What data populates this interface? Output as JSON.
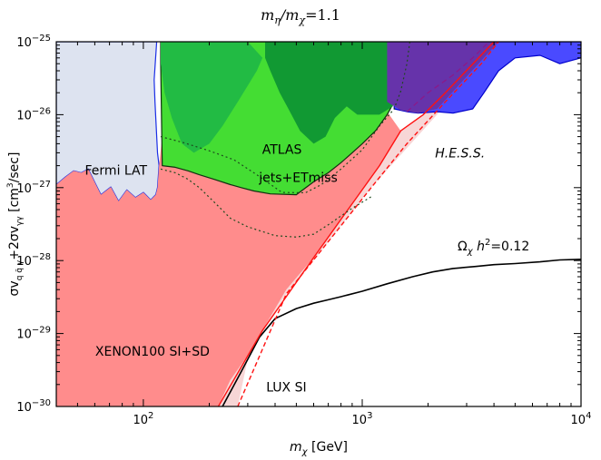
{
  "chart_data": {
    "type": "area",
    "title": "mη/mχ = 1.1",
    "xlabel": "mχ [GeV]",
    "ylabel": "σv q q̄ γ + 2σv γγ [cm³/sec]",
    "xscale": "log",
    "yscale": "log",
    "xlim": [
      40,
      10000
    ],
    "ylim": [
      1e-30,
      1e-25
    ],
    "x_ticks": [
      {
        "value": 100,
        "base": "10",
        "exp": "2"
      },
      {
        "value": 1000,
        "base": "10",
        "exp": "3"
      },
      {
        "value": 10000,
        "base": "10",
        "exp": "4"
      }
    ],
    "y_ticks": [
      {
        "value": 1e-30,
        "base": "10",
        "exp": "−30"
      },
      {
        "value": 1e-29,
        "base": "10",
        "exp": "−29"
      },
      {
        "value": 1e-28,
        "base": "10",
        "exp": "−28"
      },
      {
        "value": 1e-27,
        "base": "10",
        "exp": "−27"
      },
      {
        "value": 1e-26,
        "base": "10",
        "exp": "−26"
      },
      {
        "value": 1e-25,
        "base": "10",
        "exp": "−25"
      }
    ],
    "title_parts": {
      "m1": "m",
      "sub1": "η",
      "slash": "/",
      "m2": "m",
      "sub2": "χ",
      "eq": "=1.1"
    },
    "xlabel_parts": {
      "m": "m",
      "sub": "χ",
      "unit": " [GeV]"
    },
    "ylabel_parts": {
      "a": "σv",
      "sub1": "q q̄ γ",
      "b": "+2σv",
      "sub2": "γγ",
      "c": " [cm",
      "sup": "3",
      "d": "/sec]"
    },
    "relic_label_parts": {
      "omega": "Ω",
      "sub": "χ",
      "h": " h",
      "sup": "2",
      "val": "=0.12"
    },
    "series": [
      {
        "name": "Fermi LAT",
        "style": "fill",
        "fill": "#dde3f0",
        "stroke": "#1a2ee6",
        "points": [
          [
            40,
            1e-25
          ],
          [
            115,
            1e-25
          ],
          [
            112,
            3e-26
          ],
          [
            113,
            1.5e-26
          ],
          [
            116,
            3e-27
          ],
          [
            118,
            2e-27
          ],
          [
            116,
            1e-27
          ],
          [
            114,
            8e-28
          ],
          [
            108,
            6.8e-28
          ],
          [
            100,
            8.6e-28
          ],
          [
            92,
            7.3e-28
          ],
          [
            84,
            9.3e-28
          ],
          [
            77,
            6.5e-28
          ],
          [
            71,
            1.02e-27
          ],
          [
            64,
            8e-28
          ],
          [
            60,
            1.18e-27
          ],
          [
            56,
            1.8e-27
          ],
          [
            52,
            1.6e-27
          ],
          [
            48,
            1.7e-27
          ],
          [
            44,
            1.4e-27
          ],
          [
            40,
            1.1e-27
          ]
        ]
      },
      {
        "name": "XENON100 SI+SD",
        "style": "fill",
        "fill": "#ff8c8c",
        "stroke": "none",
        "points": [
          [
            40,
            1.1e-27
          ],
          [
            44,
            1.4e-27
          ],
          [
            48,
            1.7e-27
          ],
          [
            52,
            1.6e-27
          ],
          [
            56,
            1.8e-27
          ],
          [
            60,
            1.18e-27
          ],
          [
            64,
            8e-28
          ],
          [
            71,
            1.02e-27
          ],
          [
            77,
            6.5e-28
          ],
          [
            84,
            9.3e-28
          ],
          [
            92,
            7.3e-28
          ],
          [
            100,
            8.6e-28
          ],
          [
            108,
            6.8e-28
          ],
          [
            114,
            8e-28
          ],
          [
            116,
            1e-27
          ],
          [
            118,
            2e-27
          ],
          [
            122,
            5e-27
          ],
          [
            130,
            7e-27
          ],
          [
            150,
            9e-27
          ],
          [
            200,
            1.2e-26
          ],
          [
            300,
            1.3e-26
          ],
          [
            500,
            1.2e-26
          ],
          [
            700,
            1.1e-26
          ],
          [
            900,
            1.05e-26
          ],
          [
            1100,
            1e-26
          ],
          [
            1300,
            1.1e-26
          ],
          [
            1500,
            6e-27
          ],
          [
            1200,
            2e-27
          ],
          [
            900,
            6e-28
          ],
          [
            600,
            1.1e-28
          ],
          [
            450,
            4e-29
          ],
          [
            350,
            1.1e-29
          ],
          [
            300,
            5e-30
          ],
          [
            250,
            2.3e-30
          ],
          [
            220,
            1e-30
          ],
          [
            40,
            1e-30
          ]
        ]
      },
      {
        "name": "LUX SI",
        "style": "fill",
        "fill": "#f7d6d6",
        "stroke": "none",
        "points": [
          [
            220,
            1e-30
          ],
          [
            250,
            2.3e-30
          ],
          [
            300,
            5e-30
          ],
          [
            350,
            1.1e-29
          ],
          [
            450,
            4e-29
          ],
          [
            600,
            1.1e-28
          ],
          [
            900,
            6e-28
          ],
          [
            1200,
            2e-27
          ],
          [
            1500,
            6e-27
          ],
          [
            1900,
            1e-26
          ],
          [
            2400,
            2e-26
          ],
          [
            3200,
            3.5e-26
          ],
          [
            1100,
            1e-27
          ],
          [
            800,
            3e-28
          ],
          [
            600,
            1e-28
          ],
          [
            450,
            3.5e-29
          ],
          [
            350,
            1.1e-29
          ],
          [
            300,
            4.5e-30
          ],
          [
            270,
            1e-30
          ]
        ]
      },
      {
        "name": "ATLAS jets+ETmiss",
        "style": "fill",
        "fill": "#44dd33",
        "stroke": "#103010",
        "points": [
          [
            120,
            1e-25
          ],
          [
            1400,
            1e-25
          ],
          [
            1440,
            3e-26
          ],
          [
            1400,
            1.5e-26
          ],
          [
            1300,
            1e-26
          ],
          [
            1150,
            6e-27
          ],
          [
            1000,
            4e-27
          ],
          [
            900,
            3e-27
          ],
          [
            800,
            2.2e-27
          ],
          [
            700,
            1.6e-27
          ],
          [
            600,
            1.2e-27
          ],
          [
            500,
            8e-28
          ],
          [
            380,
            8.2e-28
          ],
          [
            320,
            9e-28
          ],
          [
            280,
            1e-27
          ],
          [
            250,
            1.1e-27
          ],
          [
            210,
            1.3e-27
          ],
          [
            180,
            1.5e-27
          ],
          [
            160,
            1.7e-27
          ],
          [
            140,
            1.9e-27
          ],
          [
            122,
            2e-27
          ],
          [
            120,
            5e-26
          ]
        ]
      },
      {
        "name": "ATLAS band",
        "style": "fill",
        "fill": "#22bb44",
        "stroke": "none",
        "points": [
          [
            120,
            1e-25
          ],
          [
            300,
            1e-25
          ],
          [
            350,
            6e-26
          ],
          [
            330,
            4e-26
          ],
          [
            300,
            2.5e-26
          ],
          [
            270,
            1.5e-26
          ],
          [
            230,
            7e-27
          ],
          [
            200,
            4e-27
          ],
          [
            170,
            3e-27
          ],
          [
            150,
            4e-27
          ],
          [
            135,
            9e-27
          ],
          [
            125,
            2e-26
          ],
          [
            120,
            5e-26
          ]
        ]
      },
      {
        "name": "ATLAS band 2",
        "style": "fill",
        "fill": "#119933",
        "stroke": "none",
        "points": [
          [
            360,
            1e-25
          ],
          [
            1400,
            1e-25
          ],
          [
            1420,
            3e-26
          ],
          [
            1380,
            1.3e-26
          ],
          [
            1200,
            1e-26
          ],
          [
            950,
            1e-26
          ],
          [
            850,
            1.3e-26
          ],
          [
            750,
            9e-27
          ],
          [
            680,
            5e-27
          ],
          [
            600,
            4e-27
          ],
          [
            520,
            6e-27
          ],
          [
            460,
            1.2e-26
          ],
          [
            420,
            2e-26
          ],
          [
            380,
            4e-26
          ],
          [
            360,
            6e-26
          ]
        ]
      },
      {
        "name": "H.E.S.S.",
        "style": "fill",
        "fill": "#4a4aff",
        "stroke": "#0000cc",
        "points": [
          [
            1400,
            1e-25
          ],
          [
            10000,
            1e-25
          ],
          [
            10000,
            6e-26
          ],
          [
            8000,
            5e-26
          ],
          [
            6500,
            6.5e-26
          ],
          [
            5000,
            6e-26
          ],
          [
            4200,
            4e-26
          ],
          [
            3600,
            2e-26
          ],
          [
            3200,
            1.2e-26
          ],
          [
            2600,
            1.05e-26
          ],
          [
            2200,
            1.1e-26
          ],
          [
            1800,
            1.05e-26
          ],
          [
            1600,
            1.1e-26
          ],
          [
            1400,
            1.2e-26
          ]
        ]
      },
      {
        "name": "H.E.S.S. overlap",
        "style": "fill",
        "fill": "#6633aa",
        "stroke": "none",
        "points": [
          [
            1300,
            1e-25
          ],
          [
            4200,
            1e-25
          ],
          [
            2200,
            1.2e-26
          ],
          [
            1800,
            1.05e-26
          ],
          [
            1500,
            1.15e-26
          ],
          [
            1300,
            1.5e-26
          ]
        ]
      },
      {
        "name": "Relic Ωχ h²=0.12",
        "style": "line",
        "stroke": "#000000",
        "dash": "",
        "width": 1.6,
        "points": [
          [
            230,
            1e-30
          ],
          [
            280,
            3e-30
          ],
          [
            340,
            9e-30
          ],
          [
            400,
            1.6e-29
          ],
          [
            500,
            2.2e-29
          ],
          [
            600,
            2.6e-29
          ],
          [
            700,
            2.9e-29
          ],
          [
            800,
            3.2e-29
          ],
          [
            1000,
            3.8e-29
          ],
          [
            1300,
            4.8e-29
          ],
          [
            1700,
            6e-29
          ],
          [
            2100,
            7e-29
          ],
          [
            2600,
            7.8e-29
          ],
          [
            3300,
            8.3e-29
          ],
          [
            4000,
            8.8e-29
          ],
          [
            5000,
            9.1e-29
          ],
          [
            6500,
            9.6e-29
          ],
          [
            8000,
            1.02e-28
          ],
          [
            10000,
            1.04e-28
          ]
        ]
      },
      {
        "name": "XENON boundary",
        "style": "line",
        "stroke": "#ff1111",
        "dash": "",
        "width": 1.4,
        "points": [
          [
            220,
            1e-30
          ],
          [
            350,
            1.1e-29
          ],
          [
            600,
            1.1e-28
          ],
          [
            900,
            6e-28
          ],
          [
            1200,
            2e-27
          ],
          [
            1500,
            6e-27
          ],
          [
            1900,
            1e-26
          ],
          [
            2400,
            2e-26
          ],
          [
            4000,
            1e-25
          ]
        ]
      },
      {
        "name": "LUX boundary",
        "style": "line",
        "stroke": "#ff1111",
        "dash": "5,3",
        "width": 1.4,
        "points": [
          [
            270,
            1e-30
          ],
          [
            450,
            3.5e-29
          ],
          [
            800,
            3e-28
          ],
          [
            1100,
            1e-27
          ],
          [
            1600,
            4e-27
          ],
          [
            2400,
            1.5e-26
          ],
          [
            3500,
            5e-26
          ],
          [
            4200,
            1e-25
          ]
        ]
      },
      {
        "name": "ATLAS dotted upper",
        "style": "line",
        "stroke": "#1e4a1e",
        "dash": "2,3",
        "width": 1.2,
        "points": [
          [
            120,
            5e-27
          ],
          [
            150,
            4.2e-27
          ],
          [
            200,
            3.2e-27
          ],
          [
            260,
            2.4e-27
          ],
          [
            330,
            1.5e-27
          ],
          [
            430,
            8.6e-28
          ],
          [
            550,
            8.5e-28
          ],
          [
            650,
            1.1e-27
          ],
          [
            800,
            1.8e-27
          ],
          [
            1000,
            3.3e-27
          ],
          [
            1200,
            7e-27
          ],
          [
            1400,
            1.2e-26
          ],
          [
            1500,
            2.1e-26
          ],
          [
            1600,
            5e-26
          ],
          [
            1650,
            1e-25
          ]
        ]
      },
      {
        "name": "ATLAS dotted lower",
        "style": "line",
        "stroke": "#1e4a1e",
        "dash": "2,3",
        "width": 1.2,
        "points": [
          [
            120,
            1.8e-27
          ],
          [
            140,
            1.6e-27
          ],
          [
            160,
            1.3e-27
          ],
          [
            180,
            1e-27
          ],
          [
            210,
            6.4e-28
          ],
          [
            250,
            3.8e-28
          ],
          [
            300,
            2.9e-28
          ],
          [
            400,
            2.2e-28
          ],
          [
            500,
            2.1e-28
          ],
          [
            600,
            2.3e-28
          ],
          [
            700,
            3.1e-28
          ],
          [
            900,
            5.2e-28
          ],
          [
            1100,
            7.5e-28
          ]
        ]
      },
      {
        "name": "H.E.S.S. dashed",
        "style": "line",
        "stroke": "#8a1a8a",
        "dash": "6,4",
        "width": 1.3,
        "points": [
          [
            1600,
            1.1e-26
          ],
          [
            2000,
            2e-26
          ],
          [
            2600,
            3.5e-26
          ],
          [
            3200,
            6e-26
          ],
          [
            3800,
            1e-25
          ]
        ]
      }
    ],
    "annotations": [
      {
        "text": "Fermi LAT",
        "x": 75,
        "y": 1.5e-27
      },
      {
        "text": "ATLAS",
        "x": 430,
        "y": 2.9e-27
      },
      {
        "text": "jets+ETmiss",
        "x": 510,
        "y": 1.2e-27
      },
      {
        "text": "XENON100 SI+SD",
        "x": 110,
        "y": 5e-30
      },
      {
        "text": "LUX SI",
        "x": 450,
        "y": 1.6e-30
      },
      {
        "text": "H.E.S.S.",
        "x": 2800,
        "y": 2.6e-27
      }
    ]
  }
}
